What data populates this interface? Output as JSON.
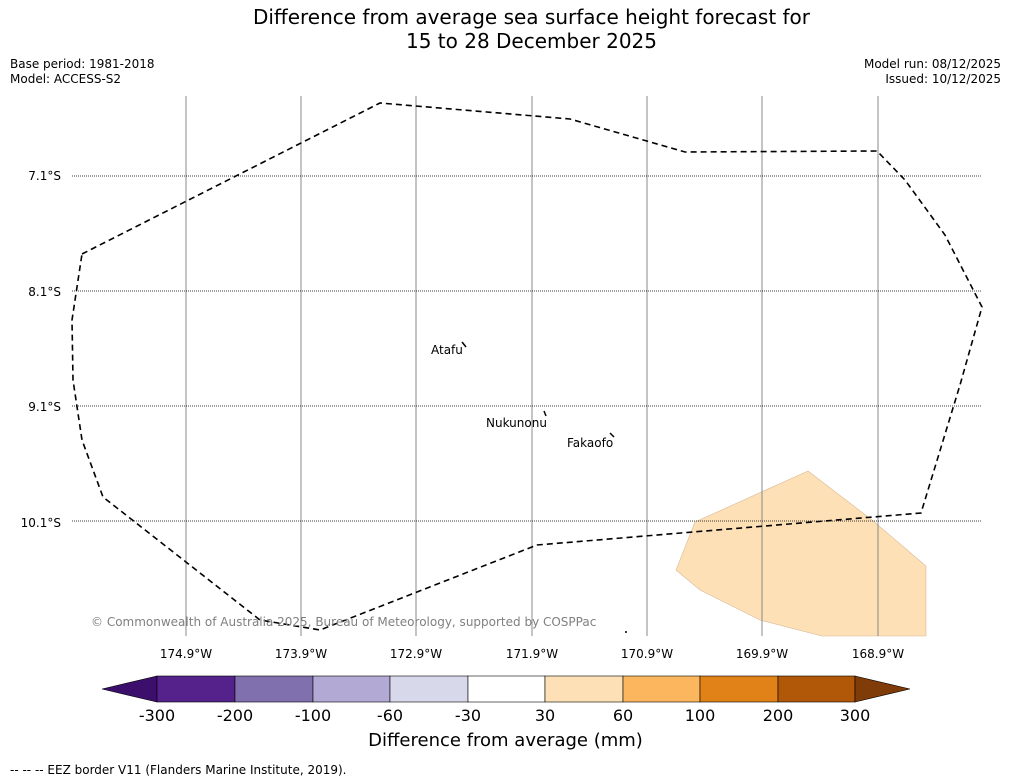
{
  "title": {
    "line1": "Difference from average sea surface height forecast for",
    "line2": "15 to 28 December 2025"
  },
  "meta": {
    "base_period": "Base period: 1981-2018",
    "model": "Model: ACCESS-S2",
    "model_run": "Model run: 08/12/2025",
    "issued": "Issued: 10/12/2025"
  },
  "map": {
    "lon_labels": [
      "174.9°W",
      "173.9°W",
      "172.9°W",
      "171.9°W",
      "170.9°W",
      "169.9°W",
      "168.9°W"
    ],
    "lat_labels": [
      "7.1°S",
      "8.1°S",
      "9.1°S",
      "10.1°S"
    ],
    "places": [
      {
        "name": "Atafu"
      },
      {
        "name": "Nukunonu"
      },
      {
        "name": "Fakaofo"
      }
    ],
    "copyright": "© Commonwealth of Australia 2025, Bureau of Meteorology, supported by COSPPac",
    "anomaly_color": "#fde0b6",
    "eez_color": "#000000"
  },
  "colorbar": {
    "title": "Difference from average (mm)",
    "ticks": [
      "-300",
      "-200",
      "-100",
      "-60",
      "-30",
      "30",
      "60",
      "100",
      "200",
      "300"
    ],
    "colors": [
      "#3b0f6b",
      "#54228a",
      "#8070ad",
      "#b2aad4",
      "#d8d8eb",
      "#ffffff",
      "#fde0b6",
      "#fbb65e",
      "#e08218",
      "#b15708",
      "#7f3b08"
    ]
  },
  "footer": "--  --  -- EEZ border V11 (Flanders Marine Institute, 2019)."
}
